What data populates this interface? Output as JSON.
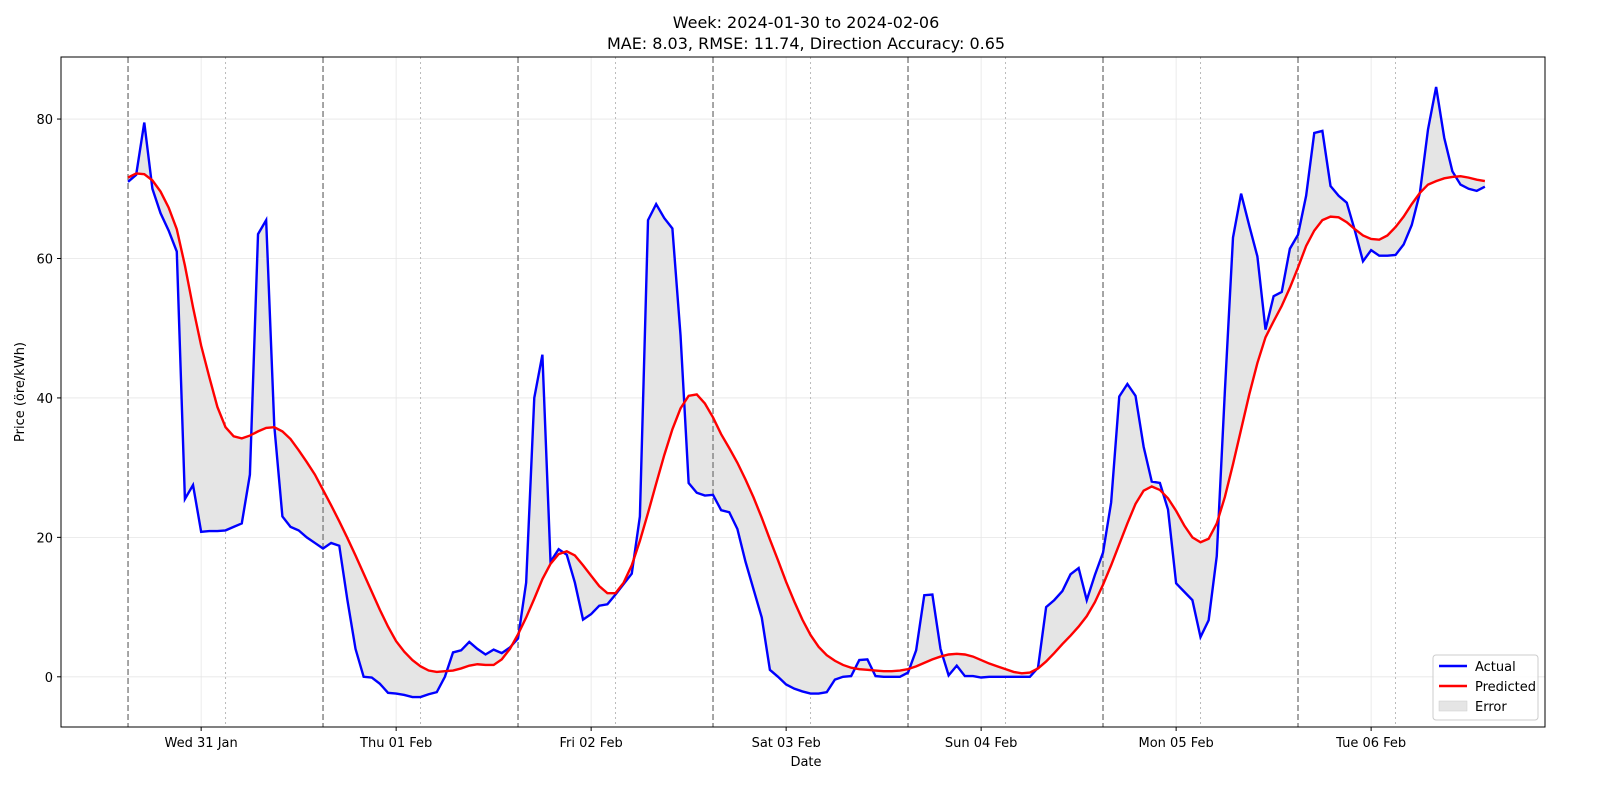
{
  "chart_data": {
    "type": "line",
    "title": "Week: 2024-01-30 to 2024-02-06",
    "subtitle": "MAE: 8.03, RMSE: 11.74, Direction Accuracy: 0.65",
    "x_label": "Date",
    "y_label": "Price (öre/kWh)",
    "xlim": [
      -8.25,
      174.4
    ],
    "ylim": [
      -7.2,
      88.9
    ],
    "xticks": [
      {
        "value": 9,
        "label": "Wed 31 Jan"
      },
      {
        "value": 33,
        "label": "Thu 01 Feb"
      },
      {
        "value": 57,
        "label": "Fri 02 Feb"
      },
      {
        "value": 81,
        "label": "Sat 03 Feb"
      },
      {
        "value": 105,
        "label": "Sun 04 Feb"
      },
      {
        "value": 129,
        "label": "Mon 05 Feb"
      },
      {
        "value": 153,
        "label": "Tue 06 Feb"
      }
    ],
    "yticks": [
      0,
      20,
      40,
      60,
      80
    ],
    "vlines_dashed": [
      0,
      24,
      48,
      72,
      96,
      120,
      144
    ],
    "vlines_dotted": [
      12,
      36,
      60,
      84,
      108,
      132,
      156
    ],
    "grid": true,
    "legend": "lower right",
    "series": [
      {
        "name": "Actual",
        "color": "#0000ff",
        "values": [
          71,
          72,
          79.5,
          70,
          66.5,
          64,
          61,
          25.5,
          27.5,
          20.8,
          20.9,
          20.9,
          21,
          21.5,
          22,
          29,
          63.5,
          65.5,
          36,
          23,
          21.5,
          21,
          20,
          19.2,
          18.4,
          19.2,
          18.8,
          11,
          4,
          0,
          -0.1,
          -1,
          -2.3,
          -2.4,
          -2.6,
          -2.9,
          -2.9,
          -2.5,
          -2.2,
          0,
          3.5,
          3.8,
          5,
          4,
          3.2,
          3.9,
          3.4,
          4.2,
          5.5,
          13.5,
          40,
          46.2,
          16.5,
          18.3,
          17.5,
          13.5,
          8.2,
          9,
          10.2,
          10.4,
          11.8,
          13.3,
          14.8,
          23,
          65.5,
          67.8,
          65.8,
          64.3,
          49,
          27.8,
          26.4,
          26,
          26.1,
          23.9,
          23.6,
          21.2,
          16.5,
          12.5,
          8.5,
          1,
          0,
          -1.1,
          -1.7,
          -2.1,
          -2.4,
          -2.4,
          -2.2,
          -0.4,
          0,
          0.1,
          2.4,
          2.5,
          0.1,
          0,
          0,
          0,
          0.6,
          3.8,
          11.7,
          11.8,
          4,
          0.2,
          1.6,
          0.1,
          0.1,
          -0.1,
          0,
          0,
          0,
          0,
          0,
          0,
          1.3,
          10,
          11,
          12.3,
          14.7,
          15.6,
          11,
          14.6,
          17.8,
          25,
          40.2,
          42,
          40.3,
          33,
          28,
          27.8,
          24,
          13.4,
          12.2,
          11,
          5.7,
          8.1,
          17.3,
          41,
          63,
          69.3,
          64.7,
          60.3,
          49.8,
          54.6,
          55.2,
          61.4,
          63.4,
          69,
          78,
          78.3,
          70.4,
          69,
          68,
          64,
          59.6,
          61.2,
          60.4,
          60.4,
          60.5,
          62,
          64.8,
          69.4,
          78.5,
          84.6,
          77.3,
          72.5,
          70.6,
          70,
          69.7,
          70.3
        ]
      },
      {
        "name": "Predicted",
        "color": "#ff0000",
        "values": [
          71.6,
          72.2,
          72.1,
          71.2,
          69.6,
          67.3,
          64.2,
          59,
          53,
          47.5,
          43,
          38.7,
          35.8,
          34.5,
          34.2,
          34.6,
          35.2,
          35.7,
          35.8,
          35.2,
          34.1,
          32.5,
          30.8,
          29,
          26.8,
          24.6,
          22.3,
          19.9,
          17.4,
          14.8,
          12.2,
          9.6,
          7.2,
          5.1,
          3.6,
          2.4,
          1.5,
          0.9,
          0.7,
          0.8,
          0.9,
          1.2,
          1.6,
          1.8,
          1.7,
          1.7,
          2.5,
          4,
          6.1,
          8.5,
          11.2,
          14,
          16.2,
          17.6,
          18,
          17.4,
          16,
          14.5,
          13,
          12,
          12,
          13.5,
          16,
          19.5,
          23.5,
          27.7,
          31.8,
          35.5,
          38.5,
          40.3,
          40.5,
          39.2,
          37.2,
          34.8,
          32.8,
          30.7,
          28.3,
          25.7,
          22.8,
          19.7,
          16.7,
          13.6,
          10.8,
          8.2,
          6,
          4.3,
          3.1,
          2.3,
          1.7,
          1.3,
          1.1,
          1,
          0.9,
          0.8,
          0.8,
          0.9,
          1.1,
          1.5,
          2,
          2.5,
          2.9,
          3.2,
          3.3,
          3.2,
          2.9,
          2.4,
          1.9,
          1.5,
          1.1,
          0.7,
          0.5,
          0.6,
          1.2,
          2.2,
          3.4,
          4.7,
          5.9,
          7.2,
          8.7,
          10.7,
          13.2,
          16,
          19,
          22,
          24.8,
          26.7,
          27.3,
          26.8,
          25.6,
          23.8,
          21.7,
          20,
          19.3,
          19.8,
          22,
          25.8,
          30.5,
          35.5,
          40.5,
          45,
          48.7,
          51,
          53.2,
          55.8,
          58.7,
          61.8,
          64,
          65.5,
          66,
          65.9,
          65.2,
          64.2,
          63.3,
          62.8,
          62.7,
          63.3,
          64.5,
          66,
          67.8,
          69.4,
          70.6,
          71.1,
          71.5,
          71.7,
          71.8,
          71.6,
          71.3,
          71.1
        ]
      }
    ],
    "error_area": {
      "name": "Error",
      "color": "#e5e5e5"
    }
  }
}
